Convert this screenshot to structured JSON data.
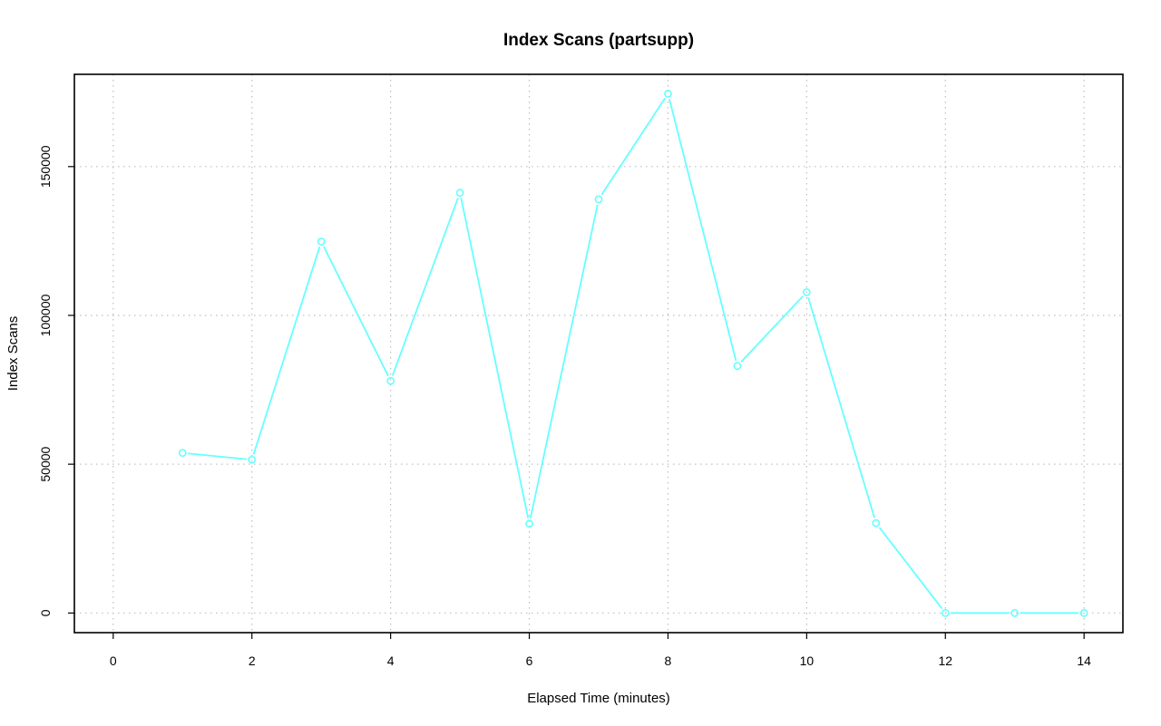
{
  "chart_data": {
    "type": "line",
    "title": "Index Scans (partsupp)",
    "xlabel": "Elapsed Time (minutes)",
    "ylabel": "Index Scans",
    "xlim": [
      -0.56,
      14.56
    ],
    "ylim": [
      -6600,
      181000
    ],
    "x_ticks": [
      0,
      2,
      4,
      6,
      8,
      10,
      12,
      14
    ],
    "y_ticks": [
      0,
      50000,
      100000,
      150000
    ],
    "grid": true,
    "series": [
      {
        "color": "#66ffff",
        "x": [
          1,
          2,
          3,
          4,
          5,
          6,
          7,
          8,
          9,
          10,
          11,
          12,
          13,
          14
        ],
        "y": [
          53800,
          51500,
          124800,
          78000,
          141200,
          30000,
          139000,
          174500,
          83000,
          107800,
          30200,
          0,
          0,
          0
        ]
      }
    ]
  }
}
